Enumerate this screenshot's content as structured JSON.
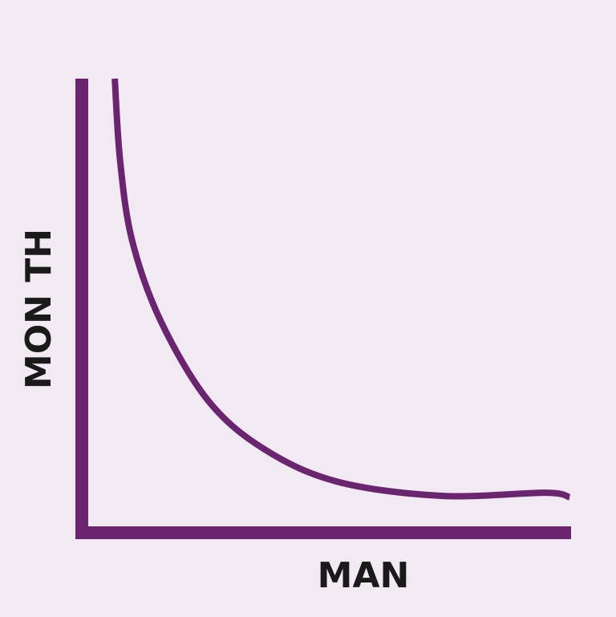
{
  "chart_data": {
    "type": "line",
    "title": "",
    "xlabel": "MAN",
    "ylabel": "MON TH",
    "xlim": [
      0,
      10
    ],
    "ylim": [
      0,
      10
    ],
    "grid": false,
    "ticks": false,
    "series": [
      {
        "x": [
          0.55,
          0.66,
          0.91,
          1.5,
          2.49,
          3.65,
          5.15,
          7.31,
          9.47,
          9.97
        ],
        "y": [
          10,
          8.17,
          6.38,
          4.59,
          2.8,
          1.72,
          1.0,
          0.68,
          0.75,
          0.65
        ]
      }
    ],
    "colors": {
      "background": "#f2eaf2",
      "axis": "#6b2570",
      "line": "#6b2570",
      "text": "#1a1a1a"
    }
  }
}
